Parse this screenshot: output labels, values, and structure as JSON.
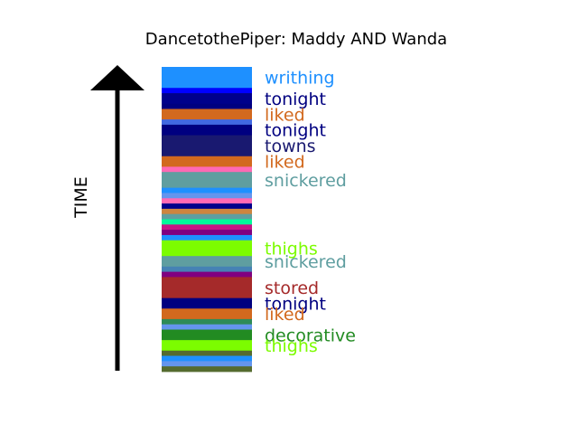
{
  "chart_data": {
    "type": "bar",
    "title": "DancetothePiper: Maddy AND Wanda",
    "ylabel": "TIME",
    "bands": [
      {
        "color": "#1e90ff",
        "label": "writhing",
        "label_color": "#1e90ff",
        "weight": 2.0
      },
      {
        "color": "#0000ff",
        "label": "",
        "weight": 0.5
      },
      {
        "color": "#00008b",
        "label": "tonight",
        "label_color": "#000080",
        "weight": 1.0
      },
      {
        "color": "#000080",
        "label": "",
        "weight": 0.5
      },
      {
        "color": "#d2691e",
        "label": "liked",
        "label_color": "#d2691e",
        "weight": 1.0
      },
      {
        "color": "#4169e1",
        "label": "",
        "weight": 0.5
      },
      {
        "color": "#000080",
        "label": "tonight",
        "label_color": "#000080",
        "weight": 1.0
      },
      {
        "color": "#191970",
        "label": "towns",
        "label_color": "#191970",
        "weight": 2.0
      },
      {
        "color": "#d2691e",
        "label": "liked",
        "label_color": "#d2691e",
        "weight": 1.0
      },
      {
        "color": "#ff69b4",
        "label": "",
        "weight": 0.5
      },
      {
        "color": "#5f9ea0",
        "label": "snickered",
        "label_color": "#5f9ea0",
        "weight": 1.5
      },
      {
        "color": "#1e90ff",
        "label": "",
        "weight": 0.5
      },
      {
        "color": "#6495ed",
        "label": "",
        "weight": 0.5
      },
      {
        "color": "#ff69b4",
        "label": "",
        "weight": 0.5
      },
      {
        "color": "#00008b",
        "label": "",
        "weight": 0.5
      },
      {
        "color": "#cd853f",
        "label": "",
        "weight": 0.5
      },
      {
        "color": "#5f9ea0",
        "label": "",
        "weight": 0.5
      },
      {
        "color": "#00fa9a",
        "label": "",
        "weight": 0.5
      },
      {
        "color": "#c71585",
        "label": "",
        "weight": 0.5
      },
      {
        "color": "#800080",
        "label": "",
        "weight": 0.5
      },
      {
        "color": "#1e90ff",
        "label": "",
        "weight": 0.5
      },
      {
        "color": "#7cfc00",
        "label": "thighs",
        "label_color": "#7cfc00",
        "weight": 1.5
      },
      {
        "color": "#5f9ea0",
        "label": "snickered",
        "label_color": "#5f9ea0",
        "weight": 1.0
      },
      {
        "color": "#4682b4",
        "label": "",
        "weight": 0.5
      },
      {
        "color": "#800080",
        "label": "",
        "weight": 0.5
      },
      {
        "color": "#a52a2a",
        "label": "stored",
        "label_color": "#a52a2a",
        "weight": 2.0
      },
      {
        "color": "#000080",
        "label": "tonight",
        "label_color": "#000080",
        "weight": 1.0
      },
      {
        "color": "#d2691e",
        "label": "liked",
        "label_color": "#d2691e",
        "weight": 1.0
      },
      {
        "color": "#2e8b57",
        "label": "",
        "weight": 0.5
      },
      {
        "color": "#6495ed",
        "label": "",
        "weight": 0.5
      },
      {
        "color": "#228b22",
        "label": "decorative",
        "label_color": "#228b22",
        "weight": 1.0
      },
      {
        "color": "#7cfc00",
        "label": "thighs",
        "label_color": "#7cfc00",
        "weight": 1.0
      },
      {
        "color": "#556b2f",
        "label": "",
        "weight": 0.5
      },
      {
        "color": "#1e90ff",
        "label": "",
        "weight": 0.5
      },
      {
        "color": "#6495ed",
        "label": "",
        "weight": 0.5
      },
      {
        "color": "#556b2f",
        "label": "",
        "weight": 0.5
      }
    ]
  }
}
